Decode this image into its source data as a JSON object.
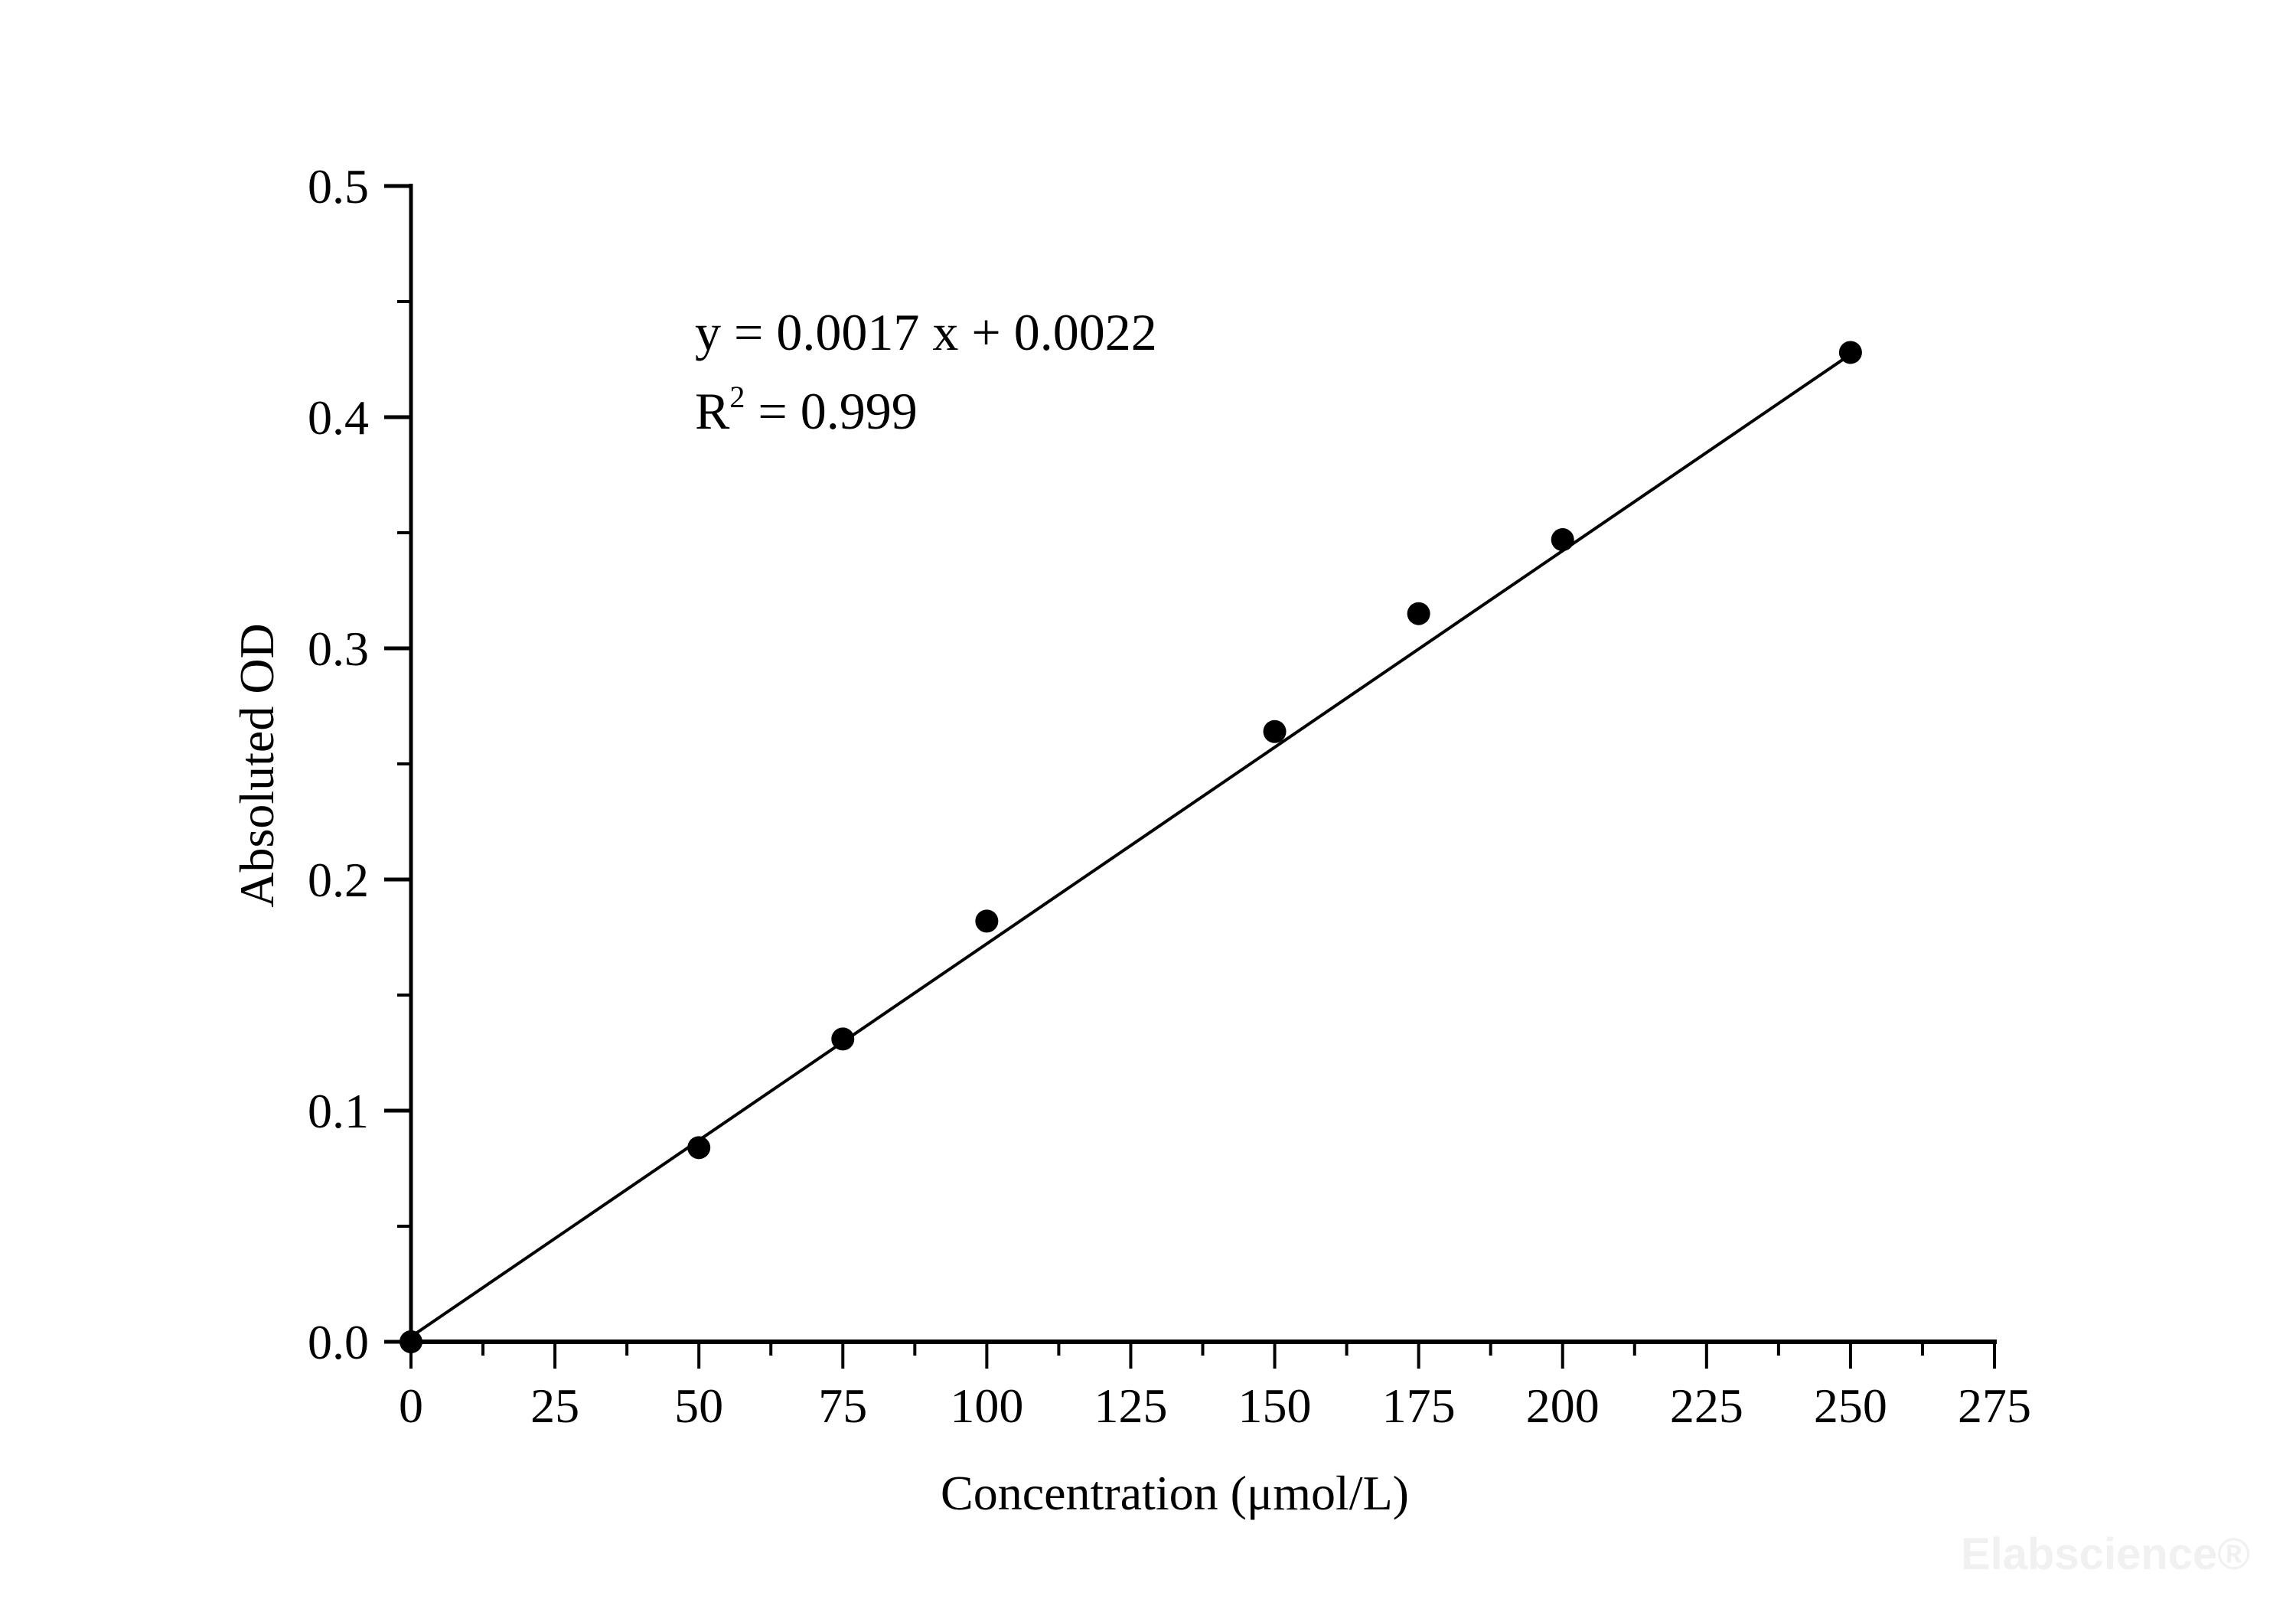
{
  "chart_data": {
    "type": "scatter",
    "xlabel": "Concentration (μmol/L)",
    "ylabel": "Absoluted OD",
    "xlim": [
      0,
      275
    ],
    "ylim": [
      0,
      0.5
    ],
    "xticks": [
      "0",
      "25",
      "50",
      "75",
      "100",
      "125",
      "150",
      "175",
      "200",
      "225",
      "250",
      "275"
    ],
    "yticks": [
      "0.0",
      "0.1",
      "0.2",
      "0.3",
      "0.4",
      "0.5"
    ],
    "grid": false,
    "points": [
      {
        "x": 0,
        "y": 0.0
      },
      {
        "x": 50,
        "y": 0.084
      },
      {
        "x": 75,
        "y": 0.131
      },
      {
        "x": 100,
        "y": 0.182
      },
      {
        "x": 150,
        "y": 0.264
      },
      {
        "x": 175,
        "y": 0.315
      },
      {
        "x": 200,
        "y": 0.347
      },
      {
        "x": 250,
        "y": 0.428
      }
    ],
    "fit": {
      "slope": 0.0017,
      "intercept": 0.0022,
      "x_range": [
        0,
        250
      ]
    },
    "annotations": {
      "equation": "y = 0.0017 x + 0.0022",
      "r2_prefix": "R",
      "r2_sup": "2",
      "r2_value": " = 0.999"
    },
    "colors": {
      "points": "#000000",
      "line": "#000000"
    }
  },
  "watermark": "Elabscience®"
}
